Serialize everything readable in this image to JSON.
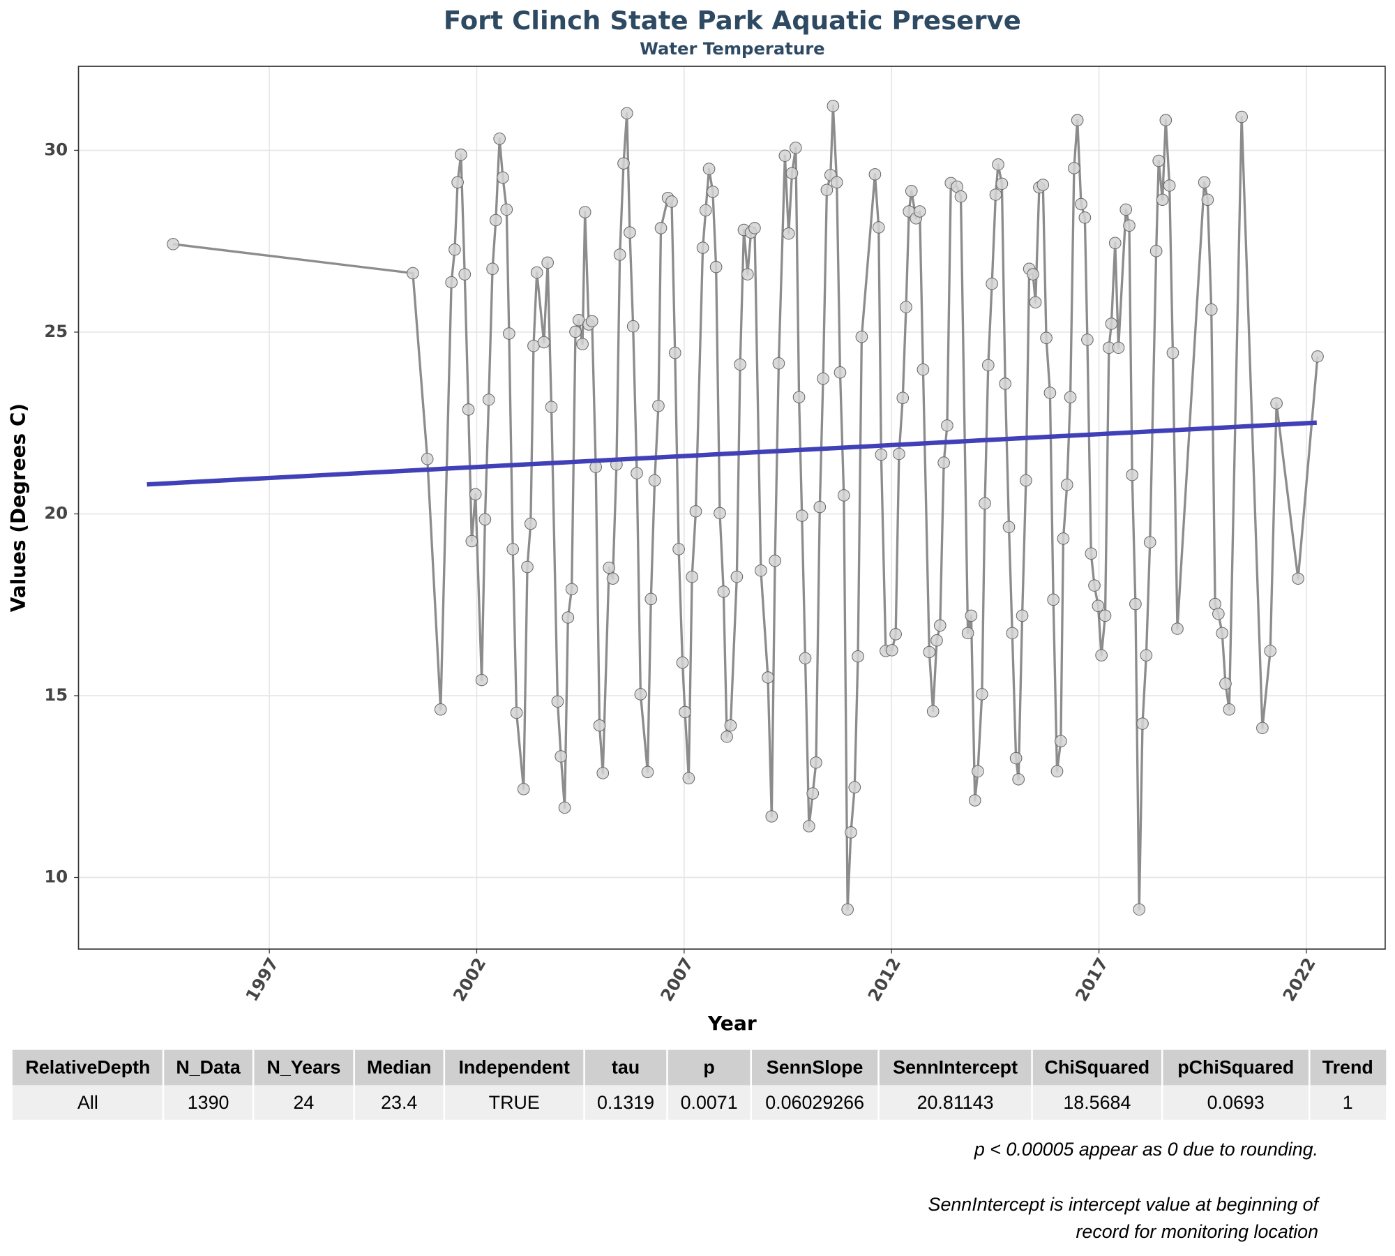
{
  "chart_data": {
    "type": "line",
    "title": "Fort Clinch State Park Aquatic Preserve",
    "subtitle": "Water Temperature",
    "x_label": "Year",
    "y_label": "Values (Degrees C)",
    "xlim": [
      1992.4,
      2023.9
    ],
    "ylim": [
      8.03,
      32.31
    ],
    "xticks": [
      1997,
      2002,
      2007,
      2012,
      2017,
      2022
    ],
    "yticks": [
      10,
      15,
      20,
      25,
      30
    ],
    "grid": true,
    "series": [
      {
        "color": "#8c8c8c",
        "marker_fill": "#d3d3d3",
        "marker_edge": "#666666",
        "x": [
          1994.68,
          2000.46,
          2000.81,
          2001.13,
          2001.39,
          2001.47,
          2001.54,
          2001.62,
          2001.71,
          2001.8,
          2001.88,
          2001.97,
          2002.12,
          2002.2,
          2002.29,
          2002.38,
          2002.46,
          2002.55,
          2002.63,
          2002.72,
          2002.78,
          2002.87,
          2002.96,
          2003.13,
          2003.22,
          2003.3,
          2003.37,
          2003.45,
          2003.62,
          2003.71,
          2003.8,
          2003.95,
          2004.03,
          2004.12,
          2004.2,
          2004.29,
          2004.38,
          2004.46,
          2004.55,
          2004.61,
          2004.7,
          2004.78,
          2004.87,
          2004.96,
          2005.04,
          2005.19,
          2005.28,
          2005.37,
          2005.45,
          2005.54,
          2005.62,
          2005.69,
          2005.77,
          2005.86,
          2005.95,
          2006.12,
          2006.2,
          2006.29,
          2006.38,
          2006.44,
          2006.61,
          2006.7,
          2006.78,
          2006.87,
          2006.96,
          2007.02,
          2007.11,
          2007.19,
          2007.28,
          2007.45,
          2007.52,
          2007.6,
          2007.69,
          2007.77,
          2007.86,
          2007.95,
          2008.03,
          2008.12,
          2008.27,
          2008.35,
          2008.44,
          2008.53,
          2008.61,
          2008.7,
          2008.85,
          2009.02,
          2009.11,
          2009.19,
          2009.28,
          2009.43,
          2009.52,
          2009.6,
          2009.69,
          2009.77,
          2009.84,
          2009.92,
          2010.01,
          2010.1,
          2010.18,
          2010.27,
          2010.35,
          2010.44,
          2010.53,
          2010.59,
          2010.68,
          2010.76,
          2010.85,
          2010.94,
          2011.02,
          2011.11,
          2011.19,
          2011.28,
          2011.6,
          2011.69,
          2011.75,
          2011.86,
          2012.01,
          2012.1,
          2012.18,
          2012.27,
          2012.35,
          2012.42,
          2012.48,
          2012.59,
          2012.68,
          2012.76,
          2012.91,
          2013.0,
          2013.09,
          2013.17,
          2013.26,
          2013.34,
          2013.43,
          2013.58,
          2013.67,
          2013.84,
          2013.92,
          2014.01,
          2014.08,
          2014.18,
          2014.25,
          2014.33,
          2014.42,
          2014.51,
          2014.57,
          2014.66,
          2014.74,
          2014.83,
          2014.91,
          2015.0,
          2015.06,
          2015.15,
          2015.24,
          2015.32,
          2015.41,
          2015.47,
          2015.56,
          2015.65,
          2015.73,
          2015.82,
          2015.9,
          2015.99,
          2016.08,
          2016.14,
          2016.23,
          2016.31,
          2016.4,
          2016.48,
          2016.57,
          2016.66,
          2016.72,
          2016.81,
          2016.89,
          2016.98,
          2017.06,
          2017.15,
          2017.24,
          2017.3,
          2017.39,
          2017.47,
          2017.65,
          2017.73,
          2017.8,
          2017.88,
          2017.97,
          2018.05,
          2018.14,
          2018.23,
          2018.38,
          2018.44,
          2018.53,
          2018.61,
          2018.7,
          2018.78,
          2018.89,
          2019.54,
          2019.62,
          2019.71,
          2019.8,
          2019.88,
          2019.97,
          2020.05,
          2020.14,
          2020.44,
          2020.94,
          2021.13,
          2021.28,
          2021.8,
          2022.27
        ],
        "values": [
          27.42,
          26.62,
          21.51,
          14.62,
          26.37,
          27.27,
          29.12,
          29.88,
          26.59,
          22.87,
          19.25,
          20.54,
          15.43,
          19.85,
          23.14,
          26.74,
          28.08,
          30.32,
          29.25,
          28.37,
          24.96,
          19.03,
          14.53,
          12.43,
          18.54,
          19.73,
          24.62,
          26.64,
          24.72,
          26.91,
          22.94,
          14.84,
          13.33,
          11.92,
          17.15,
          17.93,
          25.01,
          25.33,
          24.67,
          28.3,
          25.21,
          25.3,
          21.29,
          14.18,
          12.87,
          18.52,
          18.22,
          21.36,
          27.13,
          29.64,
          31.02,
          27.74,
          25.16,
          21.12,
          15.04,
          12.9,
          17.66,
          20.92,
          22.97,
          27.86,
          28.69,
          28.59,
          24.43,
          19.03,
          15.91,
          14.55,
          12.73,
          18.27,
          20.07,
          27.32,
          28.35,
          29.49,
          28.86,
          26.79,
          20.02,
          17.86,
          13.87,
          14.18,
          18.27,
          24.11,
          27.81,
          26.59,
          27.74,
          27.86,
          18.44,
          15.5,
          11.68,
          18.71,
          24.14,
          29.85,
          27.71,
          29.37,
          30.07,
          23.21,
          19.95,
          16.03,
          11.41,
          12.31,
          13.16,
          20.19,
          23.72,
          28.91,
          29.32,
          31.22,
          29.12,
          23.89,
          20.51,
          9.12,
          11.24,
          12.48,
          16.08,
          24.87,
          29.34,
          27.88,
          21.63,
          16.23,
          16.25,
          16.69,
          21.65,
          23.19,
          25.69,
          28.32,
          28.88,
          28.13,
          28.32,
          23.97,
          16.2,
          14.57,
          16.52,
          16.93,
          21.41,
          22.43,
          29.1,
          29.0,
          28.73,
          16.72,
          17.2,
          12.12,
          12.92,
          15.04,
          20.29,
          24.09,
          26.33,
          28.78,
          29.61,
          29.08,
          23.58,
          19.64,
          16.72,
          13.28,
          12.7,
          17.2,
          20.92,
          26.74,
          26.59,
          25.82,
          28.98,
          29.05,
          24.84,
          23.33,
          17.64,
          12.92,
          13.75,
          19.32,
          20.8,
          23.21,
          29.51,
          30.83,
          28.52,
          28.15,
          24.79,
          18.91,
          18.03,
          17.47,
          16.11,
          17.2,
          24.57,
          25.23,
          27.45,
          24.57,
          28.37,
          27.93,
          21.07,
          17.52,
          9.12,
          14.23,
          16.11,
          19.22,
          27.23,
          29.71,
          28.64,
          30.83,
          29.03,
          24.43,
          16.84,
          29.12,
          28.64,
          25.62,
          17.52,
          17.25,
          16.72,
          15.33,
          14.62,
          30.92,
          14.11,
          16.23,
          23.04,
          18.22,
          24.33
        ]
      },
      {
        "color": "#4040b8",
        "x": [
          1994.05,
          2022.25
        ],
        "values": [
          20.81,
          22.51
        ]
      }
    ]
  },
  "table": {
    "header": [
      "RelativeDepth",
      "N_Data",
      "N_Years",
      "Median",
      "Independent",
      "tau",
      "p",
      "SennSlope",
      "SennIntercept",
      "ChiSquared",
      "pChiSquared",
      "Trend"
    ],
    "rows": [
      [
        "All",
        1390,
        24,
        23.4,
        "TRUE",
        0.1319,
        0.0071,
        0.06029266,
        20.81143,
        18.5684,
        0.0693,
        1
      ]
    ]
  },
  "notes": [
    "p < 0.00005 appear as 0 due to rounding.",
    "SennIntercept is intercept value at beginning of",
    "record for monitoring location"
  ]
}
